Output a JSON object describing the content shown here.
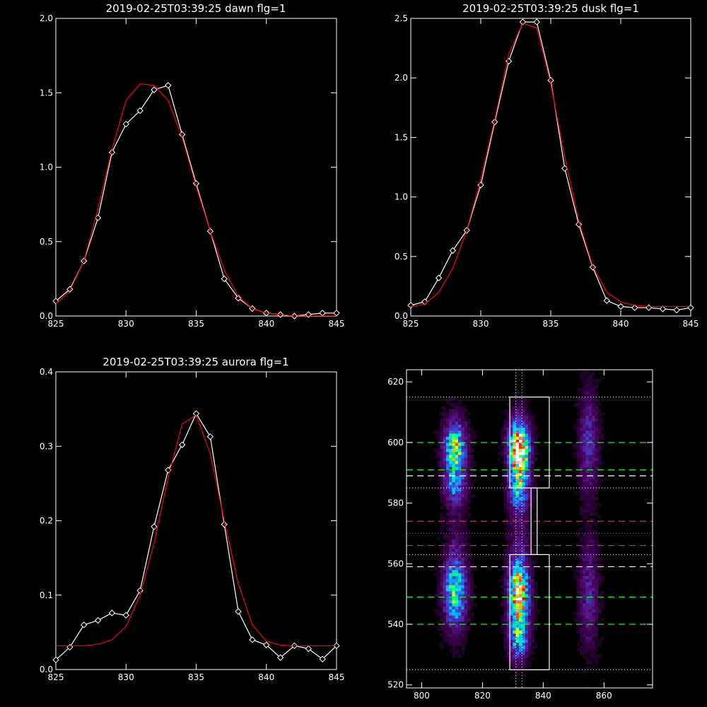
{
  "chart_data": [
    {
      "type": "line",
      "title": "2019-02-25T03:39:25 dawn flg=1",
      "xlim": [
        825,
        845
      ],
      "ylim": [
        0,
        2.0
      ],
      "xticks": [
        825,
        830,
        835,
        840,
        845
      ],
      "xtick_labels": [
        "825",
        "830",
        "835",
        "840",
        "845"
      ],
      "yticks": [
        0,
        0.5,
        1.0,
        1.5,
        2.0
      ],
      "ytick_labels": [
        "0.0",
        "0.5",
        "1.0",
        "1.5",
        "2.0"
      ],
      "series": [
        {
          "color": "#ffffff",
          "marker": "diamond",
          "x": [
            825,
            826,
            827,
            828,
            829,
            830,
            831,
            832,
            833,
            834,
            835,
            836,
            837,
            838,
            839,
            840,
            841,
            842,
            843,
            844,
            845
          ],
          "y": [
            0.1,
            0.18,
            0.37,
            0.66,
            1.1,
            1.29,
            1.38,
            1.52,
            1.55,
            1.22,
            0.89,
            0.57,
            0.25,
            0.12,
            0.05,
            0.02,
            0.01,
            0.0,
            0.01,
            0.02,
            0.02
          ]
        },
        {
          "color": "#ff0000",
          "x": [
            825,
            826,
            827,
            828,
            829,
            830,
            831,
            832,
            833,
            834,
            835,
            836,
            837,
            838,
            839,
            840,
            841,
            842,
            843,
            844,
            845
          ],
          "y": [
            0.08,
            0.17,
            0.37,
            0.72,
            1.12,
            1.45,
            1.56,
            1.55,
            1.45,
            1.2,
            0.87,
            0.57,
            0.31,
            0.13,
            0.05,
            0.02,
            0.01,
            0.0,
            0.0,
            0.0,
            0.0
          ]
        }
      ]
    },
    {
      "type": "line",
      "title": "2019-02-25T03:39:25 dusk flg=1",
      "xlim": [
        825,
        845
      ],
      "ylim": [
        0,
        2.5
      ],
      "xticks": [
        825,
        830,
        835,
        840,
        845
      ],
      "xtick_labels": [
        "825",
        "830",
        "835",
        "840",
        "845"
      ],
      "yticks": [
        0,
        0.5,
        1.0,
        1.5,
        2.0,
        2.5
      ],
      "ytick_labels": [
        "0.0",
        "0.5",
        "1.0",
        "1.5",
        "2.0",
        "2.5"
      ],
      "series": [
        {
          "color": "#ffffff",
          "marker": "diamond",
          "x": [
            825,
            826,
            827,
            828,
            829,
            830,
            831,
            832,
            833,
            834,
            835,
            836,
            837,
            838,
            839,
            840,
            841,
            842,
            843,
            844,
            845
          ],
          "y": [
            0.09,
            0.12,
            0.32,
            0.55,
            0.72,
            1.1,
            1.63,
            2.14,
            2.47,
            2.47,
            1.98,
            1.24,
            0.77,
            0.41,
            0.13,
            0.08,
            0.07,
            0.07,
            0.06,
            0.05,
            0.07
          ]
        },
        {
          "color": "#ff0000",
          "x": [
            825,
            826,
            827,
            828,
            829,
            830,
            831,
            832,
            833,
            834,
            835,
            836,
            837,
            838,
            839,
            840,
            841,
            842,
            843,
            844,
            845
          ],
          "y": [
            0.08,
            0.1,
            0.2,
            0.4,
            0.72,
            1.15,
            1.65,
            2.2,
            2.46,
            2.42,
            1.95,
            1.33,
            0.8,
            0.42,
            0.2,
            0.12,
            0.09,
            0.08,
            0.08,
            0.08,
            0.08
          ]
        }
      ]
    },
    {
      "type": "line",
      "title": "2019-02-25T03:39:25 aurora flg=1",
      "xlim": [
        825,
        845
      ],
      "ylim": [
        0,
        0.4
      ],
      "xticks": [
        825,
        830,
        835,
        840,
        845
      ],
      "xtick_labels": [
        "825",
        "830",
        "835",
        "840",
        "845"
      ],
      "yticks": [
        0,
        0.1,
        0.2,
        0.3,
        0.4
      ],
      "ytick_labels": [
        "0.0",
        "0.1",
        "0.2",
        "0.3",
        "0.4"
      ],
      "series": [
        {
          "color": "#ffffff",
          "marker": "diamond",
          "x": [
            825,
            826,
            827,
            828,
            829,
            830,
            831,
            832,
            833,
            834,
            835,
            836,
            837,
            838,
            839,
            840,
            841,
            842,
            843,
            844,
            845
          ],
          "y": [
            0.013,
            0.03,
            0.06,
            0.066,
            0.076,
            0.073,
            0.106,
            0.192,
            0.268,
            0.302,
            0.344,
            0.313,
            0.195,
            0.078,
            0.04,
            0.033,
            0.016,
            0.032,
            0.028,
            0.014,
            0.032
          ]
        },
        {
          "color": "#ff0000",
          "x": [
            825,
            826,
            827,
            828,
            829,
            830,
            831,
            832,
            833,
            834,
            835,
            836,
            837,
            838,
            839,
            840,
            841,
            842,
            843,
            844,
            845
          ],
          "y": [
            0.032,
            0.032,
            0.032,
            0.034,
            0.04,
            0.058,
            0.1,
            0.17,
            0.258,
            0.33,
            0.342,
            0.29,
            0.2,
            0.115,
            0.06,
            0.038,
            0.033,
            0.032,
            0.032,
            0.032,
            0.032
          ]
        }
      ]
    },
    {
      "type": "heatmap",
      "title": "",
      "xlim": [
        795,
        876
      ],
      "ylim": [
        519,
        624
      ],
      "xticks": [
        800,
        820,
        840,
        860
      ],
      "xtick_labels": [
        "800",
        "820",
        "840",
        "860"
      ],
      "yticks": [
        520,
        540,
        560,
        580,
        600,
        620
      ],
      "ytick_labels": [
        "520",
        "540",
        "560",
        "580",
        "600",
        "620"
      ],
      "colormap": [
        "#000000",
        "#3a004a",
        "#5a1a90",
        "#3050e0",
        "#00c8ff",
        "#00ff80",
        "#ffff00",
        "#ff0000",
        "#ffffff"
      ],
      "blobs": [
        {
          "cx": 811,
          "cy": 598,
          "sx": 2.6,
          "sy": 6.5,
          "amp": 0.62
        },
        {
          "cx": 811,
          "cy": 585,
          "sx": 2.6,
          "sy": 4.5,
          "amp": 0.3
        },
        {
          "cx": 811,
          "cy": 551,
          "sx": 2.6,
          "sy": 8.5,
          "amp": 0.58
        },
        {
          "cx": 832,
          "cy": 598,
          "sx": 2.3,
          "sy": 6.5,
          "amp": 1.0
        },
        {
          "cx": 832,
          "cy": 584,
          "sx": 2.3,
          "sy": 5.0,
          "amp": 0.42
        },
        {
          "cx": 832,
          "cy": 550,
          "sx": 2.3,
          "sy": 8.5,
          "amp": 0.85
        },
        {
          "cx": 832,
          "cy": 535,
          "sx": 2.3,
          "sy": 5.0,
          "amp": 0.35
        },
        {
          "cx": 855,
          "cy": 600,
          "sx": 2.2,
          "sy": 12.0,
          "amp": 0.26
        },
        {
          "cx": 855,
          "cy": 550,
          "sx": 2.2,
          "sy": 12.0,
          "amp": 0.24
        },
        {
          "cx": 832,
          "cy": 572,
          "sx": 2.5,
          "sy": 6.0,
          "amp": 0.1
        },
        {
          "cx": 811,
          "cy": 572,
          "sx": 2.5,
          "sy": 6.0,
          "amp": 0.08
        }
      ],
      "boxes": [
        {
          "x0": 829,
          "x1": 842,
          "y0": 585,
          "y1": 615,
          "color": "#ffffff"
        },
        {
          "x0": 829,
          "x1": 842,
          "y0": 525,
          "y1": 563,
          "color": "#ffffff"
        }
      ],
      "connector_x": [
        836,
        838
      ],
      "connector_y": [
        563,
        585
      ],
      "dotted_hlines": [
        {
          "y": 615,
          "color": "#ffffff"
        },
        {
          "y": 585,
          "color": "#ffffff"
        },
        {
          "y": 563,
          "color": "#ffffff"
        },
        {
          "y": 525,
          "color": "#ffffff"
        },
        {
          "y": 570,
          "color": "#ff4040"
        }
      ],
      "dashed_hlines": [
        {
          "y": 600,
          "color": "#00ff00"
        },
        {
          "y": 591,
          "color": "#00ff00"
        },
        {
          "y": 549,
          "color": "#00ff00"
        },
        {
          "y": 540,
          "color": "#00ff00"
        },
        {
          "y": 589,
          "color": "#ffffff"
        },
        {
          "y": 559,
          "color": "#ffffff"
        },
        {
          "y": 574,
          "color": "#ff2020"
        },
        {
          "y": 566,
          "color": "#ff2020"
        }
      ],
      "dotted_vlines": [
        {
          "x": 831,
          "color": "#ffffff"
        },
        {
          "x": 833,
          "color": "#ffffff"
        }
      ]
    }
  ]
}
